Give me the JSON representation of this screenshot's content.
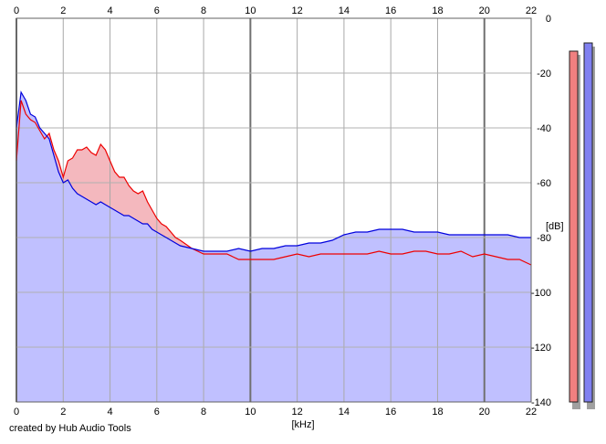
{
  "footer": {
    "credit": "created by Hub Audio Tools"
  },
  "chart_data": {
    "type": "area",
    "title": "",
    "xlabel": "[kHz]",
    "ylabel": "[dB]",
    "xlim": [
      0,
      22
    ],
    "ylim": [
      -140,
      0
    ],
    "x_ticks": [
      0,
      2,
      4,
      6,
      8,
      10,
      12,
      14,
      16,
      18,
      20,
      22
    ],
    "y_ticks": [
      0,
      -20,
      -40,
      -60,
      -80,
      -100,
      -120,
      -140
    ],
    "grid": true,
    "colors": {
      "red_line": "#ee0000",
      "red_fill": "#f4b8be",
      "blue_line": "#0000dd",
      "blue_fill": "#c0c0ff",
      "red_meter": "#f08080",
      "blue_meter": "#8080f0"
    },
    "series": [
      {
        "color": "red",
        "x": [
          0,
          0.2,
          0.4,
          0.6,
          0.8,
          1.0,
          1.2,
          1.4,
          1.6,
          1.8,
          2.0,
          2.2,
          2.4,
          2.6,
          2.8,
          3.0,
          3.2,
          3.4,
          3.6,
          3.8,
          4.0,
          4.2,
          4.4,
          4.6,
          4.8,
          5.0,
          5.2,
          5.4,
          5.6,
          5.8,
          6.0,
          6.2,
          6.4,
          6.6,
          6.8,
          7.0,
          7.5,
          8.0,
          8.5,
          9.0,
          9.5,
          10.0,
          10.5,
          11.0,
          11.5,
          12.0,
          12.5,
          13.0,
          13.5,
          14.0,
          14.5,
          15.0,
          15.5,
          16.0,
          16.5,
          17.0,
          17.5,
          18.0,
          18.5,
          19.0,
          19.5,
          20.0,
          20.5,
          21.0,
          21.5,
          22.0
        ],
        "y": [
          -52,
          -30,
          -35,
          -37,
          -38,
          -41,
          -44,
          -42,
          -48,
          -52,
          -58,
          -52,
          -51,
          -48,
          -48,
          -47,
          -49,
          -50,
          -46,
          -48,
          -52,
          -56,
          -58,
          -58,
          -61,
          -63,
          -64,
          -63,
          -67,
          -70,
          -73,
          -75,
          -76,
          -78,
          -80,
          -81,
          -84,
          -86,
          -86,
          -86,
          -88,
          -88,
          -88,
          -88,
          -87,
          -86,
          -87,
          -86,
          -86,
          -86,
          -86,
          -86,
          -85,
          -86,
          -86,
          -85,
          -85,
          -86,
          -86,
          -85,
          -87,
          -86,
          -87,
          -88,
          -88,
          -90
        ]
      },
      {
        "color": "blue",
        "x": [
          0,
          0.2,
          0.4,
          0.6,
          0.8,
          1.0,
          1.2,
          1.4,
          1.6,
          1.8,
          2.0,
          2.2,
          2.4,
          2.6,
          2.8,
          3.0,
          3.2,
          3.4,
          3.6,
          3.8,
          4.0,
          4.2,
          4.4,
          4.6,
          4.8,
          5.0,
          5.2,
          5.4,
          5.6,
          5.8,
          6.0,
          6.2,
          6.4,
          6.6,
          6.8,
          7.0,
          7.5,
          8.0,
          8.5,
          9.0,
          9.5,
          10.0,
          10.5,
          11.0,
          11.5,
          12.0,
          12.5,
          13.0,
          13.5,
          14.0,
          14.5,
          15.0,
          15.5,
          16.0,
          16.5,
          17.0,
          17.5,
          18.0,
          18.5,
          19.0,
          19.5,
          20.0,
          20.5,
          21.0,
          21.5,
          22.0
        ],
        "y": [
          -40,
          -27,
          -30,
          -35,
          -36,
          -40,
          -42,
          -44,
          -50,
          -56,
          -60,
          -59,
          -62,
          -64,
          -65,
          -66,
          -67,
          -68,
          -67,
          -68,
          -69,
          -70,
          -71,
          -72,
          -72,
          -73,
          -74,
          -75,
          -75,
          -77,
          -78,
          -79,
          -80,
          -81,
          -82,
          -83,
          -84,
          -85,
          -85,
          -85,
          -84,
          -85,
          -84,
          -84,
          -83,
          -83,
          -82,
          -82,
          -81,
          -79,
          -78,
          -78,
          -77,
          -77,
          -77,
          -78,
          -78,
          -78,
          -79,
          -79,
          -79,
          -79,
          -79,
          -79,
          -80,
          -80
        ]
      }
    ],
    "meters": [
      {
        "color": "red",
        "value": -12
      },
      {
        "color": "blue",
        "value": -9
      }
    ]
  }
}
